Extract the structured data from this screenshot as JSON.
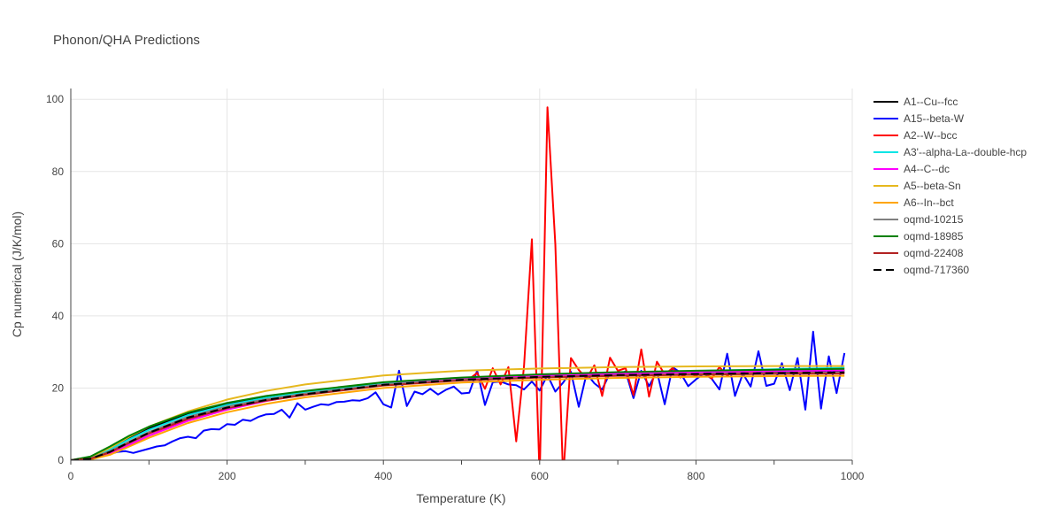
{
  "chart_data": {
    "type": "line",
    "title": "Phonon/QHA Predictions",
    "xlabel": "Temperature (K)",
    "ylabel": "Cp numerical (J/K/mol)",
    "xlim": [
      0,
      1000
    ],
    "ylim": [
      0,
      103
    ],
    "xticks": [
      0,
      200,
      400,
      600,
      800,
      1000
    ],
    "yticks": [
      0,
      20,
      40,
      60,
      80,
      100
    ],
    "grid": true,
    "legend_position": "right",
    "series": [
      {
        "name": "A1--Cu--fcc",
        "color": "#000000",
        "dash": "solid",
        "x": [
          0,
          25,
          50,
          75,
          100,
          150,
          200,
          250,
          300,
          400,
          500,
          600,
          700,
          800,
          900,
          990
        ],
        "y": [
          0,
          0.8,
          3.3,
          6.2,
          8.8,
          12.8,
          15.5,
          17.4,
          18.9,
          21.4,
          22.5,
          23.3,
          23.8,
          24.2,
          24.5,
          24.8
        ]
      },
      {
        "name": "A15--beta-W",
        "color": "#0000ff",
        "dash": "solid",
        "x": [
          0,
          20,
          40,
          60,
          70,
          80,
          90,
          100,
          110,
          120,
          130,
          140,
          150,
          160,
          170,
          180,
          190,
          200,
          210,
          220,
          230,
          240,
          250,
          260,
          270,
          280,
          290,
          300,
          310,
          320,
          330,
          340,
          350,
          360,
          370,
          380,
          390,
          400,
          410,
          420,
          430,
          440,
          450,
          460,
          470,
          480,
          490,
          500,
          510,
          520,
          530,
          540,
          550,
          560,
          570,
          580,
          590,
          600,
          610,
          620,
          630,
          640,
          650,
          660,
          670,
          680,
          690,
          700,
          710,
          720,
          730,
          740,
          750,
          760,
          770,
          780,
          790,
          800,
          810,
          820,
          830,
          840,
          850,
          860,
          870,
          880,
          890,
          900,
          910,
          920,
          930,
          940,
          950,
          960,
          970,
          980,
          990
        ],
        "y": [
          0,
          0.3,
          1.2,
          2.3,
          2.5,
          2.0,
          2.6,
          3.2,
          3.8,
          4.1,
          5.2,
          6.1,
          6.5,
          6.1,
          8.2,
          8.6,
          8.5,
          10.0,
          9.8,
          11.2,
          10.9,
          12.0,
          12.7,
          12.8,
          14.0,
          11.8,
          15.8,
          14.0,
          14.8,
          15.5,
          15.3,
          16.1,
          16.2,
          16.6,
          16.5,
          17.2,
          18.8,
          15.5,
          14.6,
          24.8,
          15.0,
          19.0,
          18.3,
          19.8,
          18.2,
          19.5,
          20.4,
          18.5,
          18.7,
          24.8,
          15.3,
          21.6,
          21.8,
          21.0,
          20.8,
          19.6,
          21.8,
          19.3,
          23.6,
          19.0,
          21.5,
          24.5,
          14.8,
          24.0,
          21.3,
          19.6,
          24.2,
          23.5,
          24.6,
          17.2,
          24.8,
          20.5,
          24.6,
          15.5,
          25.8,
          24.3,
          20.5,
          22.4,
          24.0,
          22.6,
          19.6,
          29.5,
          17.8,
          24.0,
          20.4,
          30.2,
          20.6,
          21.2,
          26.9,
          19.4,
          28.3,
          14.0,
          35.6,
          14.3,
          28.8,
          18.6,
          29.7
        ]
      },
      {
        "name": "A2--W--bcc",
        "color": "#ff0000",
        "dash": "solid",
        "x": [
          0,
          25,
          50,
          75,
          100,
          150,
          200,
          250,
          300,
          400,
          500,
          510,
          520,
          530,
          540,
          550,
          560,
          570,
          580,
          590,
          600,
          610,
          620,
          630,
          640,
          650,
          660,
          670,
          680,
          690,
          700,
          710,
          720,
          730,
          740,
          750,
          760,
          770,
          780,
          790,
          800,
          810,
          820,
          830,
          840,
          850,
          860,
          870,
          880,
          890,
          900,
          910,
          920,
          930,
          940,
          950,
          960,
          970,
          980,
          990
        ],
        "y": [
          0,
          0.4,
          1.8,
          4.2,
          6.8,
          11.2,
          14.2,
          16.5,
          18.2,
          20.8,
          22.8,
          22.5,
          24.2,
          19.8,
          25.5,
          21.0,
          25.8,
          5.2,
          26.0,
          61.2,
          -5.0,
          97.8,
          59.8,
          -5.0,
          28.3,
          25.0,
          22.6,
          26.3,
          17.8,
          28.4,
          24.8,
          25.5,
          18.0,
          30.7,
          17.6,
          27.3,
          23.8,
          25.5,
          22.9,
          24.0,
          23.4,
          24.5,
          22.6,
          25.8,
          23.5,
          24.6,
          23.9,
          24.5,
          23.9,
          24.2,
          24.1,
          24.2,
          24.1,
          24.3,
          24.2,
          24.3,
          24.2,
          24.3,
          24.2,
          24.3
        ]
      },
      {
        "name": "A3'--alpha-La--double-hcp",
        "color": "#00e5e5",
        "dash": "solid",
        "x": [
          0,
          25,
          50,
          75,
          100,
          150,
          200,
          250,
          300,
          400,
          500,
          600,
          700,
          800,
          900,
          990
        ],
        "y": [
          0,
          0.7,
          3.0,
          5.8,
          8.4,
          12.5,
          15.3,
          17.3,
          18.8,
          21.2,
          22.5,
          23.5,
          24.2,
          24.7,
          25.2,
          25.6
        ]
      },
      {
        "name": "A4--C--dc",
        "color": "#ff00ff",
        "dash": "solid",
        "x": [
          0,
          25,
          50,
          75,
          100,
          150,
          200,
          250,
          300,
          400,
          500,
          600,
          700,
          800,
          900,
          990
        ],
        "y": [
          0,
          0.3,
          1.8,
          4.3,
          6.8,
          10.9,
          14.0,
          16.4,
          18.3,
          21.0,
          22.5,
          23.5,
          24.0,
          24.4,
          24.7,
          24.9
        ]
      },
      {
        "name": "A5--beta-Sn",
        "color": "#e6b81e",
        "dash": "solid",
        "x": [
          0,
          25,
          50,
          75,
          100,
          150,
          200,
          250,
          300,
          400,
          500,
          600,
          700,
          800,
          900,
          990
        ],
        "y": [
          0,
          0.8,
          3.4,
          6.5,
          9.3,
          13.5,
          16.8,
          19.2,
          21.0,
          23.5,
          24.8,
          25.4,
          25.8,
          26.0,
          26.1,
          26.1
        ]
      },
      {
        "name": "A6--In--bct",
        "color": "#ffa500",
        "dash": "solid",
        "x": [
          0,
          25,
          50,
          75,
          100,
          150,
          200,
          250,
          300,
          400,
          500,
          600,
          700,
          800,
          900,
          990
        ],
        "y": [
          0,
          0.2,
          1.5,
          3.8,
          6.2,
          10.3,
          13.3,
          15.6,
          17.4,
          20.0,
          21.5,
          22.3,
          22.8,
          23.1,
          23.3,
          23.4
        ]
      },
      {
        "name": "oqmd-10215",
        "color": "#808080",
        "dash": "solid",
        "x": [
          0,
          25,
          50,
          75,
          100,
          150,
          200,
          250,
          300,
          400,
          500,
          600,
          700,
          800,
          900,
          990
        ],
        "y": [
          0,
          0.5,
          2.5,
          5.2,
          7.8,
          12.0,
          14.9,
          16.9,
          18.5,
          21.0,
          22.3,
          23.0,
          23.5,
          23.9,
          24.1,
          24.3
        ]
      },
      {
        "name": "oqmd-18985",
        "color": "#008000",
        "dash": "solid",
        "x": [
          0,
          25,
          50,
          75,
          100,
          150,
          200,
          250,
          300,
          400,
          500,
          600,
          700,
          800,
          900,
          990
        ],
        "y": [
          0,
          1.0,
          3.8,
          6.8,
          9.3,
          13.2,
          15.9,
          17.8,
          19.2,
          21.6,
          22.9,
          23.8,
          24.4,
          24.8,
          25.1,
          25.3
        ]
      },
      {
        "name": "oqmd-22408",
        "color": "#b22222",
        "dash": "solid",
        "x": [
          0,
          25,
          50,
          75,
          100,
          150,
          200,
          250,
          300,
          400,
          500,
          600,
          700,
          800,
          900,
          990
        ],
        "y": [
          0,
          0.4,
          2.2,
          4.8,
          7.4,
          11.5,
          14.4,
          16.5,
          18.1,
          20.7,
          22.1,
          22.9,
          23.4,
          23.7,
          23.9,
          24.0
        ]
      },
      {
        "name": "oqmd-717360",
        "color": "#000000",
        "dash": "dash",
        "x": [
          0,
          25,
          50,
          75,
          100,
          150,
          200,
          250,
          300,
          400,
          500,
          600,
          700,
          800,
          900,
          990
        ],
        "y": [
          0,
          0.4,
          2.3,
          5.0,
          7.6,
          11.8,
          14.6,
          16.7,
          18.3,
          20.9,
          22.3,
          23.1,
          23.6,
          23.9,
          24.1,
          24.3
        ]
      }
    ]
  }
}
